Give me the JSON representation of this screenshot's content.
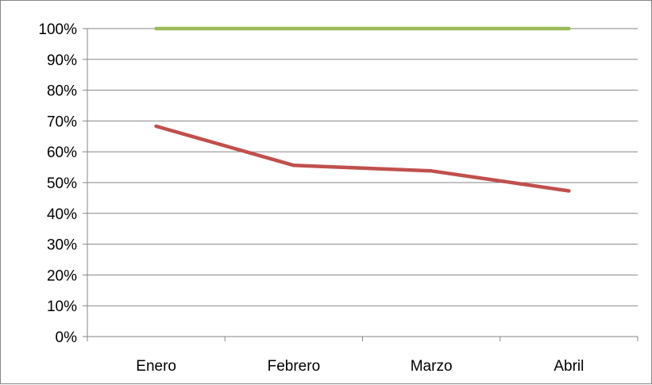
{
  "chart_data": {
    "type": "line",
    "categories": [
      "Enero",
      "Febrero",
      "Marzo",
      "Abril"
    ],
    "series": [
      {
        "values": [
          100,
          100,
          100,
          100
        ],
        "color": "#9BBB59"
      },
      {
        "values": [
          68.3,
          55.6,
          53.8,
          47.3
        ],
        "color": "#C0504D"
      }
    ],
    "y_ticks": [
      "0%",
      "10%",
      "20%",
      "30%",
      "40%",
      "50%",
      "60%",
      "70%",
      "80%",
      "90%",
      "100%"
    ],
    "ylim": [
      0,
      100
    ],
    "grid": true,
    "legend": "none",
    "title": "",
    "xlabel": "",
    "ylabel": ""
  }
}
